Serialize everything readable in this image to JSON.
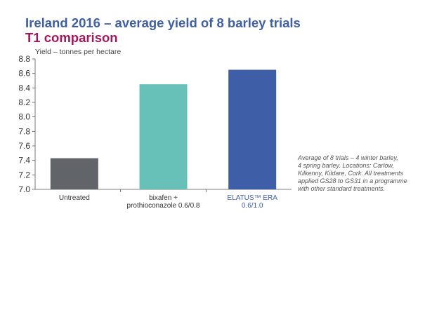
{
  "title": "Ireland 2016 – average yield of 8 barley trials",
  "subtitle": "T1 comparison",
  "chart_data": {
    "type": "bar",
    "categories": [
      [
        "Untreated"
      ],
      [
        "bixafen +",
        "prothioconazole 0.6/0.8"
      ],
      [
        "ELATUS™ ERA",
        "0.6/1.0"
      ]
    ],
    "values": [
      7.43,
      8.45,
      8.65
    ],
    "colors": [
      "#616468",
      "#67c1b8",
      "#3e5ea8"
    ],
    "ylabel": "Yield – tonnes per hectare",
    "ylim": [
      7.0,
      8.8
    ],
    "yticks": [
      "7.0",
      "7.2",
      "7.4",
      "7.6",
      "7.8",
      "8.0",
      "8.2",
      "8.4",
      "8.6",
      "8.8"
    ],
    "grid": false
  },
  "note": [
    "Average of 8 trials – 4 winter barley,",
    "4 spring barley. Locations: Carlow,",
    "Kilkenny, Kildare, Cork. All treatments",
    "applied GS28 to GS31 in a programme",
    "with other standard treatments."
  ]
}
